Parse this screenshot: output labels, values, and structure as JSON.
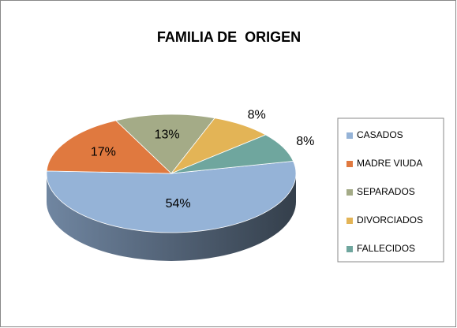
{
  "chart_data": {
    "type": "pie3d",
    "title": "FAMILIA DE  ORIGEN",
    "categories": [
      "CASADOS",
      "MADRE VIUDA",
      "SEPARADOS",
      "DIVORCIADOS",
      "FALLECIDOS"
    ],
    "values": [
      54,
      17,
      13,
      8,
      8
    ],
    "value_labels": [
      "54%",
      "17%",
      "13%",
      "8%",
      "8%"
    ],
    "colors": [
      "#95b3d7",
      "#e0793f",
      "#a4ab87",
      "#e3b456",
      "#6fa69e"
    ],
    "legend": "right"
  }
}
